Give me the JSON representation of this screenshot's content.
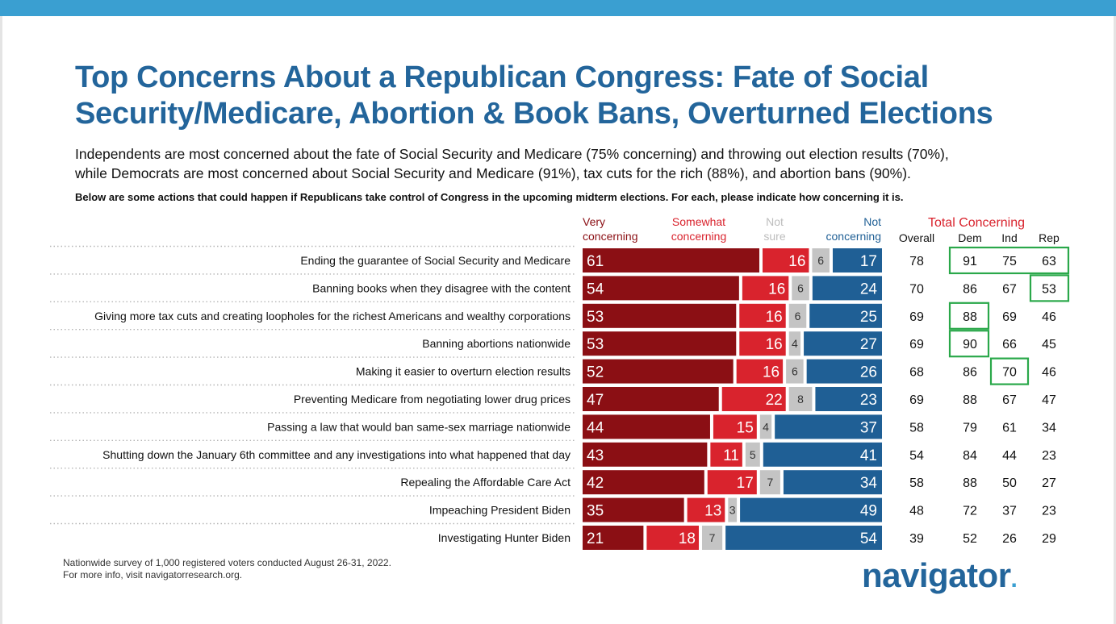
{
  "title_lines": [
    "Top Concerns About a Republican Congress: Fate of Social",
    "Security/Medicare, Abortion & Book Bans, Overturned Elections"
  ],
  "subtitle_lines": [
    "Independents are most concerned about the fate of Social Security and Medicare (75% concerning) and throwing out election results (70%),",
    "while Democrats are most concerned about Social Security and Medicare (91%), tax cuts for the rich (88%), and abortion bans (90%)."
  ],
  "question": "Below are some actions that could happen if Republicans take control of Congress in the upcoming midterm elections. For each, please indicate how concerning it is.",
  "legend": {
    "very": [
      "Very",
      "concerning"
    ],
    "somewhat": [
      "Somewhat",
      "concerning"
    ],
    "notsure": [
      "Not",
      "sure"
    ],
    "not": [
      "Not",
      "concerning"
    ],
    "total": "Total Concerning"
  },
  "columns": [
    "Overall",
    "Dem",
    "Ind",
    "Rep"
  ],
  "colors": {
    "very": "#8b0f14",
    "somewhat": "#d9232d",
    "notsure": "#c4c4c4",
    "not": "#1f5f95",
    "highlight": "#2aa84a",
    "title": "#23659b"
  },
  "chart_data": {
    "type": "bar",
    "stacked": true,
    "orientation": "horizontal",
    "categories": [
      "Ending the guarantee of Social Security and Medicare",
      "Banning books when they disagree with the content",
      "Giving more tax cuts and creating loopholes for the richest Americans and wealthy corporations",
      "Banning abortions nationwide",
      "Making it easier to overturn election results",
      "Preventing Medicare from negotiating lower drug prices",
      "Passing a law that would ban same-sex marriage nationwide",
      "Shutting down the January 6th committee and any investigations into what happened that day",
      "Repealing the Affordable Care Act",
      "Impeaching President Biden",
      "Investigating Hunter Biden"
    ],
    "series": [
      {
        "name": "Very concerning",
        "values": [
          61,
          54,
          53,
          53,
          52,
          47,
          44,
          43,
          42,
          35,
          21
        ]
      },
      {
        "name": "Somewhat concerning",
        "values": [
          16,
          16,
          16,
          16,
          16,
          22,
          15,
          11,
          17,
          13,
          18
        ]
      },
      {
        "name": "Not sure",
        "values": [
          6,
          6,
          6,
          4,
          6,
          8,
          4,
          5,
          7,
          3,
          7
        ]
      },
      {
        "name": "Not concerning",
        "values": [
          17,
          24,
          25,
          27,
          26,
          23,
          37,
          41,
          34,
          49,
          54
        ]
      }
    ],
    "total_concerning": {
      "Overall": [
        78,
        70,
        69,
        69,
        68,
        69,
        58,
        54,
        58,
        48,
        39
      ],
      "Dem": [
        91,
        86,
        88,
        90,
        86,
        88,
        79,
        84,
        88,
        72,
        52
      ],
      "Ind": [
        75,
        67,
        69,
        66,
        70,
        67,
        61,
        44,
        50,
        37,
        26
      ],
      "Rep": [
        63,
        53,
        46,
        45,
        46,
        47,
        34,
        23,
        27,
        23,
        29
      ]
    },
    "highlights": [
      {
        "row": 0,
        "columns": [
          "Dem",
          "Ind",
          "Rep"
        ]
      },
      {
        "row": 1,
        "columns": [
          "Rep"
        ]
      },
      {
        "row": 2,
        "columns": [
          "Dem"
        ]
      },
      {
        "row": 3,
        "columns": [
          "Dem"
        ]
      },
      {
        "row": 4,
        "columns": [
          "Ind"
        ]
      }
    ]
  },
  "footer_lines": [
    "Nationwide survey of 1,000 registered voters conducted August 26-31, 2022.",
    "For more info, visit navigatorresearch.org."
  ],
  "logo_text": "navigator",
  "logo_mark": "."
}
